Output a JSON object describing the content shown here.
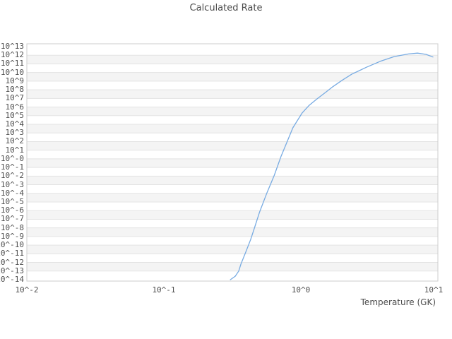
{
  "header": {
    "title": "Calculated Rate"
  },
  "chart_data": {
    "type": "line",
    "title": "Calculated Rate",
    "xlabel": "Temperature (GK)",
    "x_axis": {
      "scale": "log",
      "min": 0.01,
      "max": 10,
      "tick_labels": [
        "10^-2",
        "10^-1",
        "10^0",
        "10^1"
      ],
      "tick_values": [
        0.01,
        0.1,
        1,
        10
      ]
    },
    "y_axis": {
      "scale": "log",
      "min_exponent": -14,
      "max_exponent": 13,
      "tick_labels": [
        "10^13",
        "10^12",
        "10^11",
        "10^10",
        "10^9",
        "10^8",
        "10^7",
        "10^6",
        "10^5",
        "10^4",
        "10^3",
        "10^2",
        "10^1",
        "10^-0",
        "10^-1",
        "10^-2",
        "10^-3",
        "10^-4",
        "10^-5",
        "10^-6",
        "10^-7",
        "10^-8",
        "10^-9",
        "10^-10",
        "10^-11",
        "10^-12",
        "10^-13",
        "10^-14"
      ],
      "tick_exponents": [
        13,
        12,
        11,
        10,
        9,
        8,
        7,
        6,
        5,
        4,
        3,
        2,
        1,
        0,
        -1,
        -2,
        -3,
        -4,
        -5,
        -6,
        -7,
        -8,
        -9,
        -10,
        -11,
        -12,
        -13,
        -14
      ]
    },
    "series": [
      {
        "name": "Calculated Rate",
        "color": "#78abe2",
        "points_T_log10rate": [
          [
            0.306,
            -14.0
          ],
          [
            0.332,
            -13.6
          ],
          [
            0.352,
            -13.0
          ],
          [
            0.365,
            -12.2
          ],
          [
            0.396,
            -10.8
          ],
          [
            0.43,
            -9.35
          ],
          [
            0.465,
            -7.7
          ],
          [
            0.5,
            -6.15
          ],
          [
            0.565,
            -3.95
          ],
          [
            0.64,
            -1.9
          ],
          [
            0.717,
            0.3
          ],
          [
            0.78,
            1.7
          ],
          [
            0.875,
            3.6
          ],
          [
            1.02,
            5.3
          ],
          [
            1.15,
            6.2
          ],
          [
            1.3,
            6.9
          ],
          [
            1.5,
            7.65
          ],
          [
            1.71,
            8.35
          ],
          [
            2.0,
            9.1
          ],
          [
            2.35,
            9.8
          ],
          [
            3.0,
            10.6
          ],
          [
            3.8,
            11.3
          ],
          [
            4.8,
            11.85
          ],
          [
            6.1,
            12.15
          ],
          [
            7.1,
            12.25
          ],
          [
            8.2,
            12.1
          ],
          [
            9.2,
            11.8
          ]
        ]
      }
    ],
    "style": {
      "band_gray": "#f4f4f4",
      "band_white": "#ffffff",
      "grid_line_color": "#e3e3e3",
      "border_color": "#cccccc",
      "text_color": "#4f4f4f",
      "line_color": "#78abe2",
      "legend": "none",
      "grid": "horizontal-striped"
    }
  }
}
